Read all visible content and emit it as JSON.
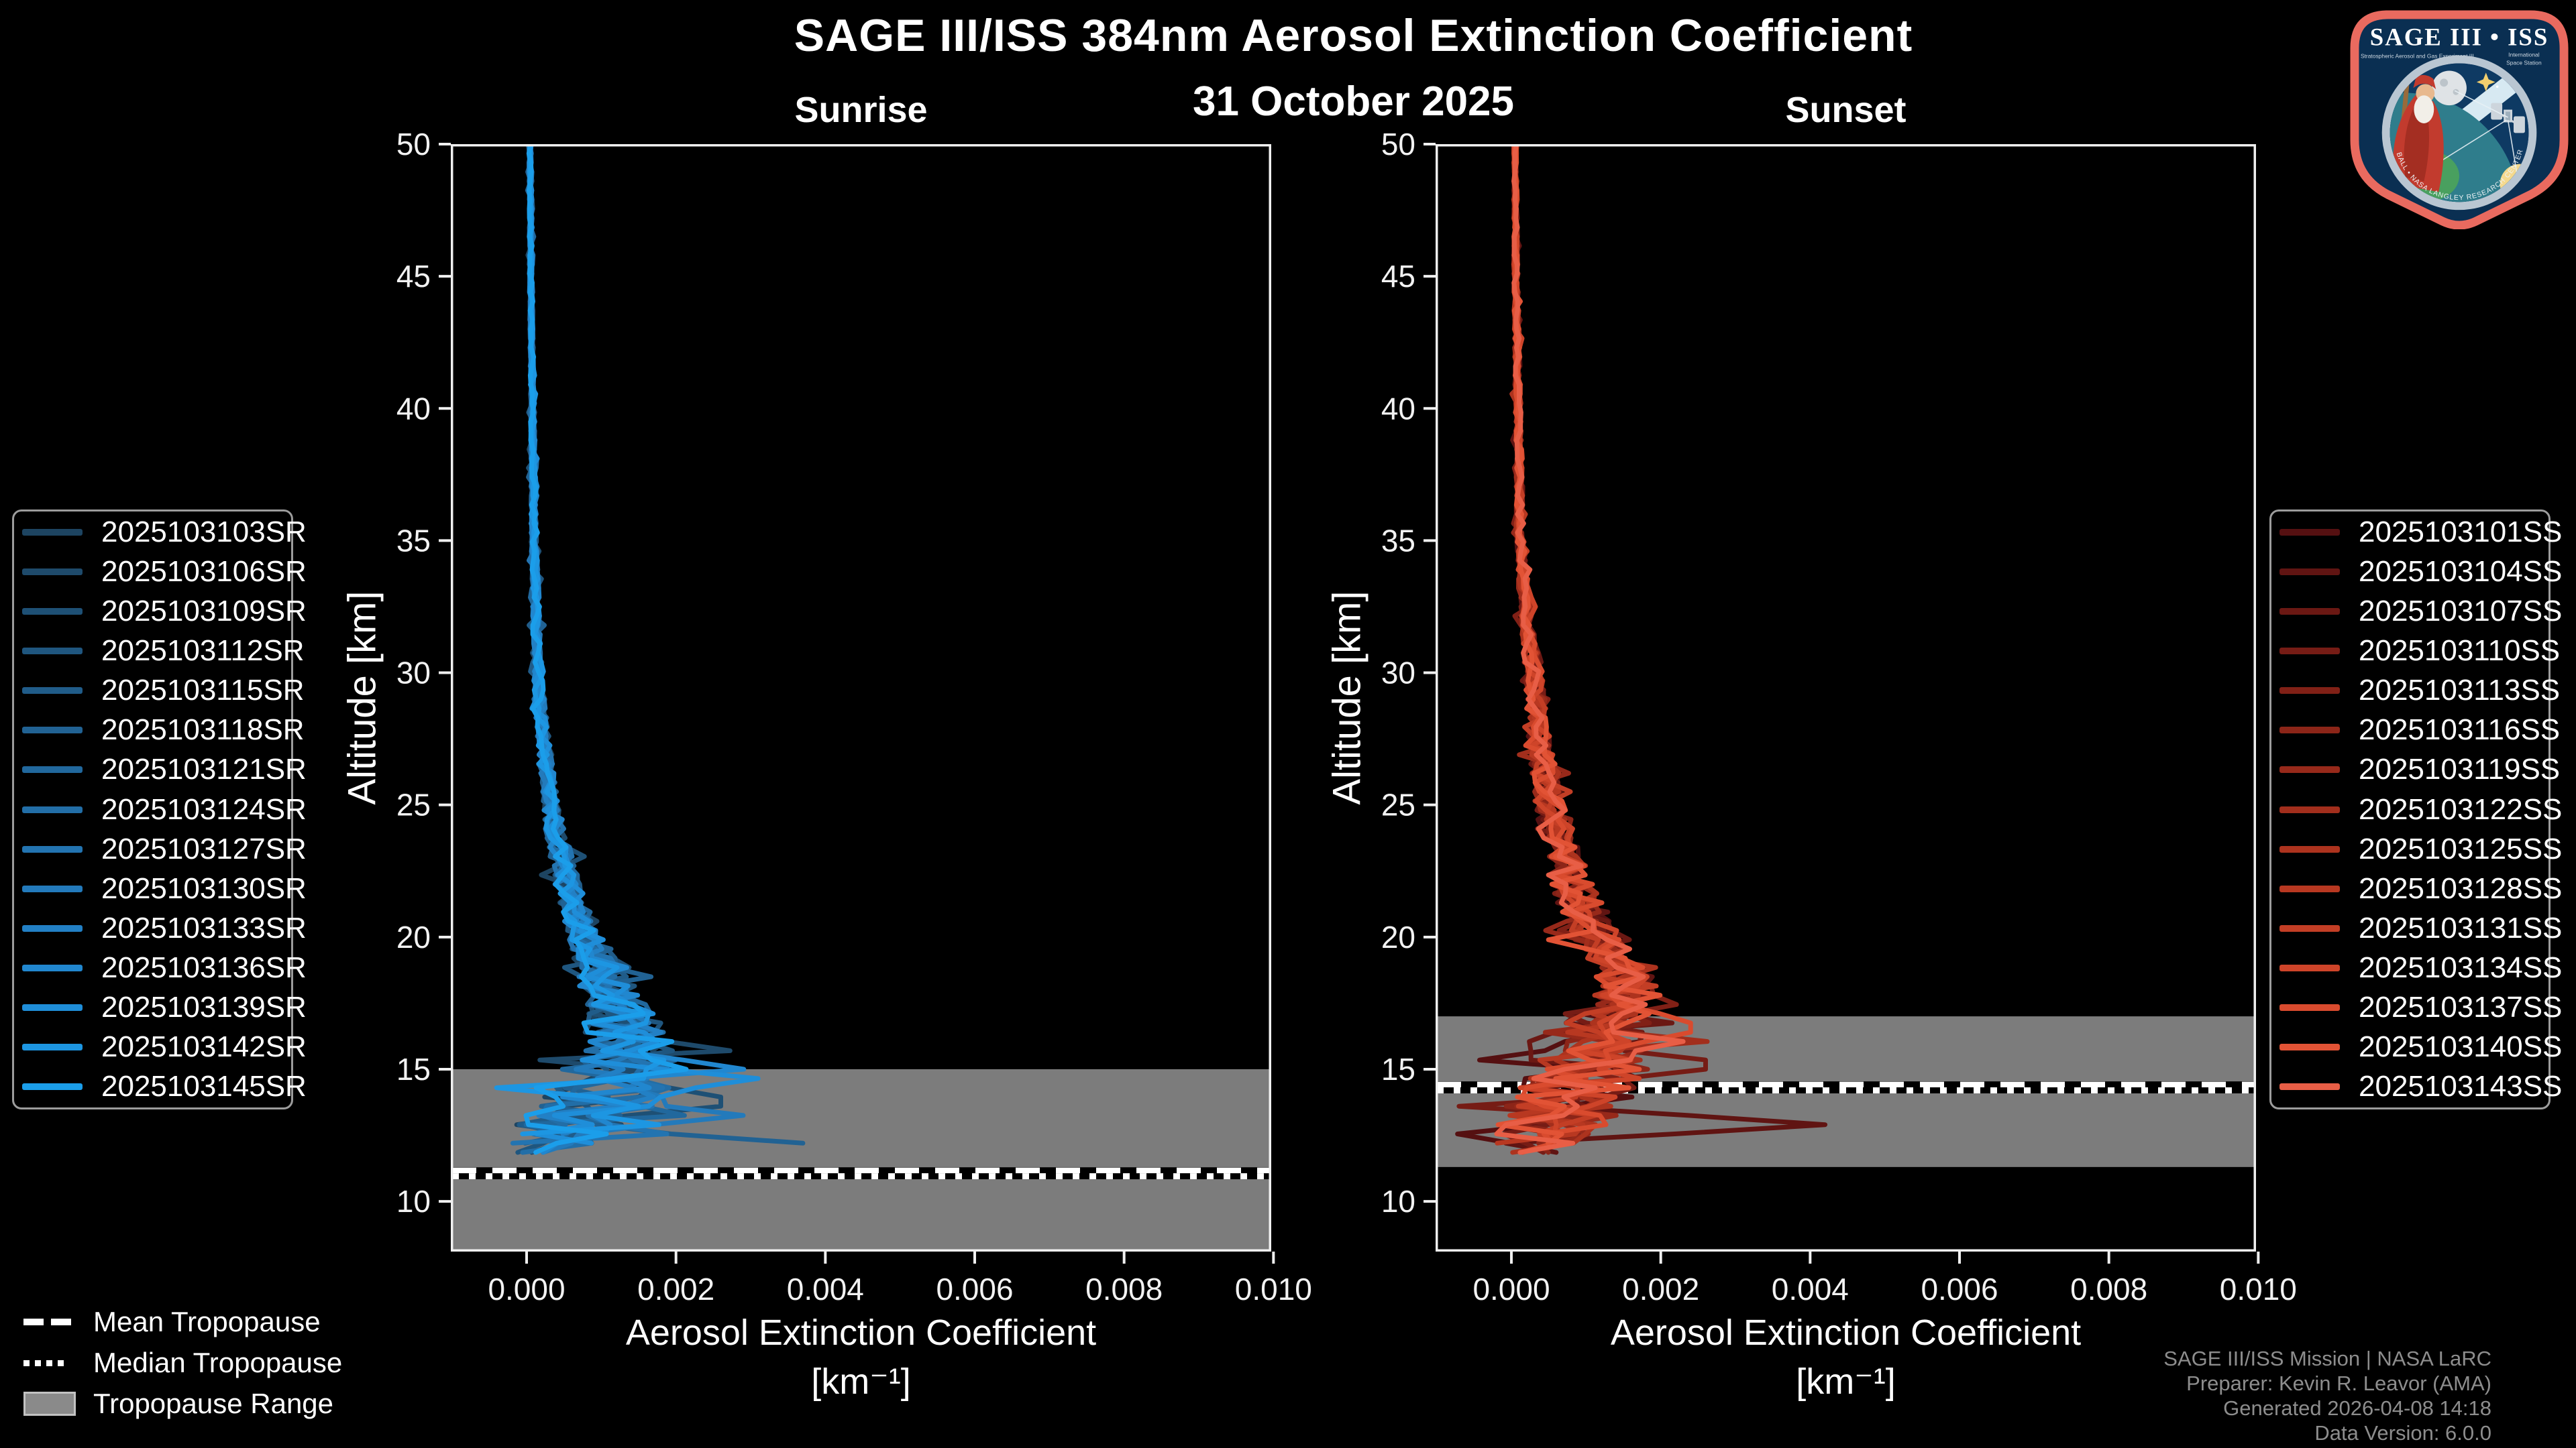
{
  "header": {
    "title": "SAGE III/ISS 384nm Aerosol Extinction Coefficient",
    "date": "31 October 2025"
  },
  "chart_data": [
    {
      "type": "line",
      "panel": "sunrise",
      "title": "Sunrise",
      "xlabel": "Aerosol Extinction Coefficient",
      "xlabel_units": "[km⁻¹]",
      "ylabel": "Altitude [km]",
      "xlim": [
        -0.001015,
        0.00997
      ],
      "ylim": [
        8.1,
        50
      ],
      "grid": false,
      "legend_position": "outside-left",
      "xticks": [
        {
          "v": 0,
          "label": "0.000"
        },
        {
          "v": 0.002,
          "label": "0.002"
        },
        {
          "v": 0.004,
          "label": "0.004"
        },
        {
          "v": 0.006,
          "label": "0.006"
        },
        {
          "v": 0.008,
          "label": "0.008"
        },
        {
          "v": 0.01,
          "label": "0.010"
        }
      ],
      "yticks": [
        {
          "v": 10,
          "label": "10"
        },
        {
          "v": 15,
          "label": "15"
        },
        {
          "v": 20,
          "label": "20"
        },
        {
          "v": 25,
          "label": "25"
        },
        {
          "v": 30,
          "label": "30"
        },
        {
          "v": 35,
          "label": "35"
        },
        {
          "v": 40,
          "label": "40"
        },
        {
          "v": 45,
          "label": "45"
        },
        {
          "v": 50,
          "label": "50"
        }
      ],
      "alt_step": 0.35,
      "band_color": "#7c7c7c",
      "tropopause": {
        "mean_km": 11.15,
        "median_km": 10.95,
        "range_km": [
          8.1,
          15.0
        ]
      },
      "base_profile": [
        [
          50,
          5e-05,
          2e-05
        ],
        [
          45,
          6e-05,
          2e-05
        ],
        [
          40,
          8e-05,
          3e-05
        ],
        [
          35,
          0.0001,
          4e-05
        ],
        [
          30,
          0.00015,
          6e-05
        ],
        [
          28,
          0.0002,
          8e-05
        ],
        [
          26,
          0.00028,
          0.0001
        ],
        [
          24,
          0.00038,
          0.00013
        ],
        [
          22,
          0.00055,
          0.00018
        ],
        [
          20,
          0.0008,
          0.00025
        ],
        [
          19,
          0.00095,
          0.0003
        ],
        [
          18,
          0.0011,
          0.0004
        ],
        [
          17,
          0.00125,
          0.0005
        ],
        [
          16,
          0.0014,
          0.0006
        ],
        [
          15,
          0.0014,
          0.00075
        ],
        [
          14,
          0.0011,
          0.00085
        ],
        [
          13,
          0.0006,
          0.0008
        ],
        [
          12.5,
          0.0004,
          0.0007
        ],
        [
          12,
          0.00025,
          0.0005
        ],
        [
          11.5,
          0.0002,
          0.0004
        ]
      ],
      "spikes": [
        {
          "series": 5,
          "alt": 12.2,
          "ext": 0.0037
        },
        {
          "series": 9,
          "alt": 13.3,
          "ext": 0.0029
        },
        {
          "series": 12,
          "alt": 14.6,
          "ext": 0.0031
        },
        {
          "series": 2,
          "alt": 13.8,
          "ext": 0.0026
        }
      ],
      "series": [
        {
          "label": "2025103103SR",
          "color": "#1d4461",
          "seed": 11,
          "alt_min": 12.0
        },
        {
          "label": "2025103106SR",
          "color": "#1e4a6b",
          "seed": 22,
          "alt_min": 11.8
        },
        {
          "label": "2025103109SR",
          "color": "#1e5075",
          "seed": 33,
          "alt_min": 12.4
        },
        {
          "label": "2025103112SR",
          "color": "#1f567f",
          "seed": 44,
          "alt_min": 11.6
        },
        {
          "label": "2025103115SR",
          "color": "#205c89",
          "seed": 55,
          "alt_min": 12.2
        },
        {
          "label": "2025103118SR",
          "color": "#216293",
          "seed": 66,
          "alt_min": 11.9
        },
        {
          "label": "2025103121SR",
          "color": "#21689d",
          "seed": 77,
          "alt_min": 12.5
        },
        {
          "label": "2025103124SR",
          "color": "#226ea7",
          "seed": 88,
          "alt_min": 11.7
        },
        {
          "label": "2025103127SR",
          "color": "#2374b1",
          "seed": 99,
          "alt_min": 12.1
        },
        {
          "label": "2025103130SR",
          "color": "#237abb",
          "seed": 110,
          "alt_min": 11.8
        },
        {
          "label": "2025103133SR",
          "color": "#2280c5",
          "seed": 121,
          "alt_min": 12.3
        },
        {
          "label": "2025103136SR",
          "color": "#2187cf",
          "seed": 132,
          "alt_min": 11.6
        },
        {
          "label": "2025103139SR",
          "color": "#1f8ed9",
          "seed": 143,
          "alt_min": 12.0
        },
        {
          "label": "2025103142SR",
          "color": "#1d96e2",
          "seed": 154,
          "alt_min": 12.4
        },
        {
          "label": "2025103145SR",
          "color": "#1b9eea",
          "seed": 165,
          "alt_min": 11.7
        }
      ]
    },
    {
      "type": "line",
      "panel": "sunset",
      "title": "Sunset",
      "xlabel": "Aerosol Extinction Coefficient",
      "xlabel_units": "[km⁻¹]",
      "ylabel": "Altitude [km]",
      "xlim": [
        -0.001015,
        0.00997
      ],
      "ylim": [
        8.1,
        50
      ],
      "grid": false,
      "legend_position": "outside-right",
      "xticks": [
        {
          "v": 0,
          "label": "0.000"
        },
        {
          "v": 0.002,
          "label": "0.002"
        },
        {
          "v": 0.004,
          "label": "0.004"
        },
        {
          "v": 0.006,
          "label": "0.006"
        },
        {
          "v": 0.008,
          "label": "0.008"
        },
        {
          "v": 0.01,
          "label": "0.010"
        }
      ],
      "yticks": [
        {
          "v": 10,
          "label": "10"
        },
        {
          "v": 15,
          "label": "15"
        },
        {
          "v": 20,
          "label": "20"
        },
        {
          "v": 25,
          "label": "25"
        },
        {
          "v": 30,
          "label": "30"
        },
        {
          "v": 35,
          "label": "35"
        },
        {
          "v": 40,
          "label": "40"
        },
        {
          "v": 45,
          "label": "45"
        },
        {
          "v": 50,
          "label": "50"
        }
      ],
      "alt_step": 0.35,
      "band_color": "#7c7c7c",
      "tropopause": {
        "mean_km": 14.4,
        "median_km": 14.2,
        "range_km": [
          11.3,
          17.0
        ]
      },
      "base_profile": [
        [
          50,
          5e-05,
          2e-05
        ],
        [
          45,
          6e-05,
          3e-05
        ],
        [
          40,
          9e-05,
          4e-05
        ],
        [
          35,
          0.00012,
          5e-05
        ],
        [
          32,
          0.0002,
          8e-05
        ],
        [
          30,
          0.0003,
          0.00012
        ],
        [
          28,
          0.00035,
          0.00014
        ],
        [
          26,
          0.00045,
          0.00018
        ],
        [
          24,
          0.0006,
          0.00025
        ],
        [
          22,
          0.0008,
          0.0003
        ],
        [
          20,
          0.00115,
          0.00032
        ],
        [
          19,
          0.0014,
          0.00038
        ],
        [
          18,
          0.0016,
          0.00042
        ],
        [
          17,
          0.0014,
          0.0006
        ],
        [
          16,
          0.001,
          0.0008
        ],
        [
          15,
          0.001,
          0.00085
        ],
        [
          14,
          0.0008,
          0.00085
        ],
        [
          13,
          0.0006,
          0.0008
        ],
        [
          12.5,
          0.0004,
          0.00065
        ],
        [
          12,
          0.00025,
          0.00045
        ],
        [
          11.6,
          0.0002,
          0.00035
        ]
      ],
      "spikes": [
        {
          "series": 1,
          "alt": 13.0,
          "ext": 0.0042
        },
        {
          "series": 3,
          "alt": 15.2,
          "ext": 0.0026
        },
        {
          "series": 12,
          "alt": 16.6,
          "ext": 0.0024
        },
        {
          "series": 14,
          "alt": 16.1,
          "ext": 0.0023
        }
      ],
      "series": [
        {
          "label": "2025103101SS",
          "color": "#551011",
          "seed": 201,
          "alt_min": 11.9
        },
        {
          "label": "2025103104SS",
          "color": "#601412",
          "seed": 212,
          "alt_min": 11.6
        },
        {
          "label": "2025103107SS",
          "color": "#6b1813",
          "seed": 223,
          "alt_min": 12.2
        },
        {
          "label": "2025103110SS",
          "color": "#761c15",
          "seed": 234,
          "alt_min": 11.8
        },
        {
          "label": "2025103113SS",
          "color": "#812016",
          "seed": 245,
          "alt_min": 12.4
        },
        {
          "label": "2025103116SS",
          "color": "#8c2518",
          "seed": 256,
          "alt_min": 11.7
        },
        {
          "label": "2025103119SS",
          "color": "#97291a",
          "seed": 267,
          "alt_min": 12.0
        },
        {
          "label": "2025103122SS",
          "color": "#a22e1c",
          "seed": 278,
          "alt_min": 12.3
        },
        {
          "label": "2025103125SS",
          "color": "#ad331e",
          "seed": 289,
          "alt_min": 11.6
        },
        {
          "label": "2025103128SS",
          "color": "#b83821",
          "seed": 300,
          "alt_min": 12.1
        },
        {
          "label": "2025103131SS",
          "color": "#c33e25",
          "seed": 311,
          "alt_min": 11.9
        },
        {
          "label": "2025103134SS",
          "color": "#ce4429",
          "seed": 322,
          "alt_min": 12.5
        },
        {
          "label": "2025103137SS",
          "color": "#d94b2e",
          "seed": 333,
          "alt_min": 11.8
        },
        {
          "label": "2025103140SS",
          "color": "#e25335",
          "seed": 344,
          "alt_min": 12.2
        },
        {
          "label": "2025103143SS",
          "color": "#e85e46",
          "seed": 355,
          "alt_min": 11.7
        }
      ]
    }
  ],
  "tropo_legend": {
    "items": [
      {
        "label": "Mean Tropopause",
        "swatch": "dash"
      },
      {
        "label": "Median Tropopause",
        "swatch": "dots"
      },
      {
        "label": "Tropopause Range",
        "swatch": "rect"
      }
    ],
    "range_color": "#8a8a8a"
  },
  "footer": {
    "lines": [
      "SAGE III/ISS Mission | NASA LaRC",
      "Preparer: Kevin R. Leavor (AMA)",
      "Generated 2026-04-08 14:18",
      "Data Version: 6.0.0"
    ]
  },
  "logo": {
    "title": "SAGE III • ISS",
    "subtitle_left": "Stratospheric Aerosol and Gas Experiment III",
    "subtitle_right_1": "International",
    "subtitle_right_2": "Space Station",
    "ring_text": "BALL • NASA LANGLEY RESEARCH CENTER • TAS-I • ESA"
  }
}
